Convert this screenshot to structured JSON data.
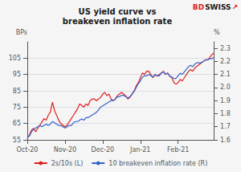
{
  "chart_data": {
    "type": "line",
    "title": "US yield curve vs\nbreakeven inflation rate",
    "ylabel": "BPs",
    "y2label": "%",
    "categories": [
      "Oct-20",
      null,
      null,
      null,
      null,
      null,
      null,
      null,
      null,
      null,
      null,
      null,
      null,
      null,
      null,
      null,
      null,
      null,
      "Nov-20",
      null,
      null,
      null,
      null,
      null,
      null,
      null,
      null,
      null,
      null,
      null,
      null,
      null,
      null,
      null,
      null,
      null,
      "Dec-20",
      null,
      null,
      null,
      null,
      null,
      null,
      null,
      null,
      null,
      null,
      null,
      null,
      null,
      null,
      null,
      null,
      null,
      "Jan-21",
      null,
      null,
      null,
      null,
      null,
      null,
      null,
      null,
      null,
      null,
      null,
      null,
      null,
      null,
      null,
      null,
      null,
      "Feb-21",
      null,
      null,
      null,
      null,
      null,
      null,
      null,
      null,
      null,
      null,
      null,
      null,
      null,
      null,
      null,
      null,
      null
    ],
    "series": [
      {
        "name": "2s/10s (L)",
        "color": "#e02020",
        "values": [
          56,
          58,
          61,
          62,
          60,
          62,
          64,
          66,
          68,
          67,
          70,
          72,
          78,
          73,
          70,
          67,
          65,
          64,
          63,
          64,
          66,
          68,
          70,
          72,
          74,
          77,
          76,
          75,
          77,
          76,
          79,
          80,
          80,
          79,
          80,
          81,
          83,
          84,
          82,
          83,
          80,
          79,
          80,
          82,
          83,
          84,
          83,
          82,
          80,
          81,
          83,
          85,
          88,
          90,
          93,
          96,
          95,
          97,
          97,
          95,
          93,
          95,
          94,
          95,
          96,
          97,
          95,
          96,
          94,
          93,
          90,
          89,
          90,
          92,
          91,
          93,
          95,
          97,
          98,
          97,
          99,
          100,
          101,
          102,
          103,
          104,
          104,
          105,
          107,
          108
        ]
      },
      {
        "name": "10 breakeven inflation rate (R)",
        "color": "#3264c8",
        "axis": "y2",
        "values": [
          1.62,
          1.63,
          1.66,
          1.68,
          1.69,
          1.7,
          1.71,
          1.7,
          1.71,
          1.72,
          1.71,
          1.72,
          1.74,
          1.73,
          1.72,
          1.71,
          1.71,
          1.7,
          1.69,
          1.7,
          1.71,
          1.71,
          1.73,
          1.74,
          1.74,
          1.75,
          1.76,
          1.75,
          1.77,
          1.77,
          1.78,
          1.79,
          1.8,
          1.81,
          1.83,
          1.85,
          1.86,
          1.87,
          1.88,
          1.89,
          1.9,
          1.9,
          1.91,
          1.93,
          1.93,
          1.94,
          1.94,
          1.93,
          1.92,
          1.93,
          1.95,
          1.97,
          2.0,
          2.03,
          2.05,
          2.08,
          2.09,
          2.09,
          2.1,
          2.09,
          2.08,
          2.1,
          2.09,
          2.09,
          2.11,
          2.12,
          2.1,
          2.11,
          2.09,
          2.08,
          2.07,
          2.07,
          2.09,
          2.11,
          2.1,
          2.12,
          2.14,
          2.16,
          2.17,
          2.16,
          2.18,
          2.19,
          2.19,
          2.19,
          2.2,
          2.21,
          2.21,
          2.22,
          2.22,
          2.23
        ]
      }
    ],
    "ylim": [
      55,
      115
    ],
    "yticks": [
      55,
      65,
      75,
      85,
      95,
      105
    ],
    "y2lim": [
      1.6,
      2.35
    ],
    "y2ticks": [
      1.6,
      1.7,
      1.8,
      1.9,
      {
        "value": 2,
        "label": "2.0"
      },
      2.1,
      2.2,
      2.3
    ],
    "grid": true,
    "legend": "bottom",
    "annotations": [
      {
        "text": "BD",
        "color": "#e02020"
      },
      {
        "text": "SWISS",
        "color": "#1a1a1a"
      },
      {
        "text": "↗",
        "color": "#e02020"
      }
    ]
  }
}
